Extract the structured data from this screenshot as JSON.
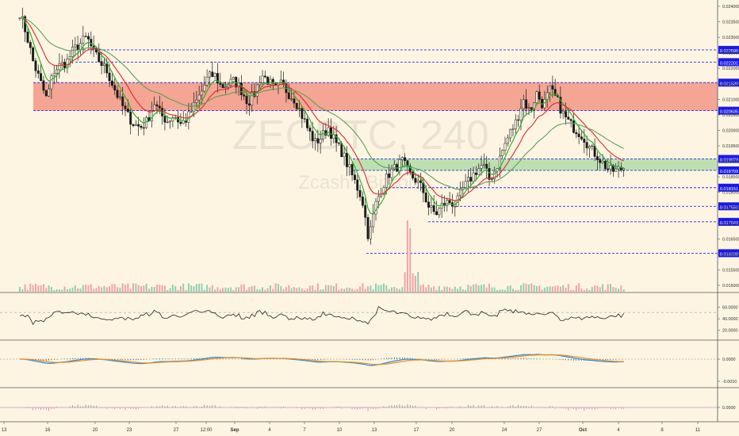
{
  "watermark": {
    "symbol": "ZECBTC, 240",
    "name": "Zcash / Bitcoin"
  },
  "colors": {
    "background": "#fdf5e2",
    "candle": "#1a1a1a",
    "ema_fast": "#2db52d",
    "ema_mid": "#e0282e",
    "ema_slow": "#5aa05a",
    "level_line": "#2a2af0",
    "price_tag": "#1a1ae6",
    "resistance_zone": "#f08a7a",
    "support_zone": "#a8d8a0",
    "volume_up": "#8ed0b4",
    "volume_down": "#f2a3a8",
    "macd_line": "#1e8ee6",
    "signal_line": "#f08a1e",
    "osc_hist_pos": "#5a8a8a",
    "osc_hist_neg": "#c46ab4"
  },
  "chart_data": [
    {
      "type": "candlestick",
      "panel": "price",
      "x_ticks": [
        "13",
        "16",
        "20",
        "23",
        "27",
        "12:00",
        "Sep",
        "4",
        "7",
        "10",
        "13",
        "17",
        "20",
        "24",
        "27",
        "Oct",
        "4",
        "8",
        "11"
      ],
      "y_ticks": [
        "0.024000",
        "0.023500",
        "0.023000",
        "0.022500",
        "0.022000",
        "0.021500",
        "0.021000",
        "0.020500",
        "0.020000",
        "0.019500",
        "0.019000",
        "0.018500",
        "0.018000",
        "0.017500",
        "0.017000",
        "0.016500",
        "0.016000",
        "0.015500",
        "0.015000"
      ],
      "ylim": [
        0.015,
        0.024
      ],
      "xlim": [
        0,
        100
      ],
      "levels": [
        "0.022596",
        "0.022201",
        "0.021539",
        "0.020635",
        "0.019079",
        "0.018709",
        "0.018151",
        "0.017550",
        "0.017049",
        "0.016038"
      ],
      "resistance_zone": [
        0.020635,
        0.021539
      ],
      "support_zone": [
        0.018709,
        0.019079
      ],
      "close_path": [
        [
          0,
          0.0238
        ],
        [
          1,
          0.0231
        ],
        [
          2,
          0.0222
        ],
        [
          3,
          0.0216
        ],
        [
          4,
          0.021
        ],
        [
          5,
          0.0219
        ],
        [
          6,
          0.0221
        ],
        [
          7,
          0.0222
        ],
        [
          8,
          0.0226
        ],
        [
          9,
          0.0228
        ],
        [
          10,
          0.023
        ],
        [
          11,
          0.0225
        ],
        [
          12,
          0.0222
        ],
        [
          13,
          0.0219
        ],
        [
          14,
          0.0214
        ],
        [
          15,
          0.0209
        ],
        [
          16,
          0.0205
        ],
        [
          17,
          0.0202
        ],
        [
          18,
          0.0201
        ],
        [
          19,
          0.0203
        ],
        [
          20,
          0.0209
        ],
        [
          21,
          0.0205
        ],
        [
          22,
          0.0203
        ],
        [
          23,
          0.0205
        ],
        [
          24,
          0.0202
        ],
        [
          25,
          0.0204
        ],
        [
          26,
          0.0208
        ],
        [
          27,
          0.0212
        ],
        [
          28,
          0.0217
        ],
        [
          29,
          0.0218
        ],
        [
          30,
          0.0214
        ],
        [
          31,
          0.0215
        ],
        [
          32,
          0.0216
        ],
        [
          33,
          0.0213
        ],
        [
          34,
          0.0209
        ],
        [
          35,
          0.0212
        ],
        [
          36,
          0.0218
        ],
        [
          37,
          0.0216
        ],
        [
          38,
          0.0213
        ],
        [
          39,
          0.0215
        ],
        [
          40,
          0.0212
        ],
        [
          41,
          0.021
        ],
        [
          42,
          0.0205
        ],
        [
          43,
          0.02
        ],
        [
          44,
          0.0196
        ],
        [
          45,
          0.0198
        ],
        [
          46,
          0.0201
        ],
        [
          47,
          0.0196
        ],
        [
          48,
          0.0193
        ],
        [
          49,
          0.0188
        ],
        [
          50,
          0.0183
        ],
        [
          51,
          0.0178
        ],
        [
          52,
          0.0165
        ],
        [
          53,
          0.0176
        ],
        [
          54,
          0.0182
        ],
        [
          55,
          0.0186
        ],
        [
          56,
          0.0188
        ],
        [
          57,
          0.019
        ],
        [
          58,
          0.0186
        ],
        [
          59,
          0.0184
        ],
        [
          60,
          0.0181
        ],
        [
          61,
          0.0175
        ],
        [
          62,
          0.0173
        ],
        [
          63,
          0.0176
        ],
        [
          64,
          0.0177
        ],
        [
          65,
          0.0176
        ],
        [
          66,
          0.0181
        ],
        [
          67,
          0.0184
        ],
        [
          68,
          0.0187
        ],
        [
          69,
          0.0189
        ],
        [
          70,
          0.0184
        ],
        [
          71,
          0.0188
        ],
        [
          72,
          0.0194
        ],
        [
          73,
          0.0199
        ],
        [
          74,
          0.0203
        ],
        [
          75,
          0.021
        ],
        [
          76,
          0.0206
        ],
        [
          77,
          0.0212
        ],
        [
          78,
          0.0208
        ],
        [
          79,
          0.0213
        ],
        [
          80,
          0.021
        ],
        [
          81,
          0.0205
        ],
        [
          82,
          0.0202
        ],
        [
          83,
          0.02
        ],
        [
          84,
          0.0198
        ],
        [
          85,
          0.0194
        ],
        [
          86,
          0.0192
        ],
        [
          87,
          0.0189
        ],
        [
          88,
          0.0187
        ],
        [
          89,
          0.0187
        ],
        [
          90,
          0.0188
        ]
      ]
    },
    {
      "type": "bar",
      "panel": "volume"
    },
    {
      "type": "line",
      "panel": "rsi",
      "y_ticks": [
        "60.0000",
        "40.0000",
        "20.0000"
      ],
      "ylim": [
        10,
        80
      ]
    },
    {
      "type": "line",
      "panel": "macd",
      "y_ticks": [
        "0.0000",
        "-0.0010"
      ]
    },
    {
      "type": "bar",
      "panel": "oscillator",
      "y_ticks": [
        "0.0000"
      ]
    }
  ]
}
